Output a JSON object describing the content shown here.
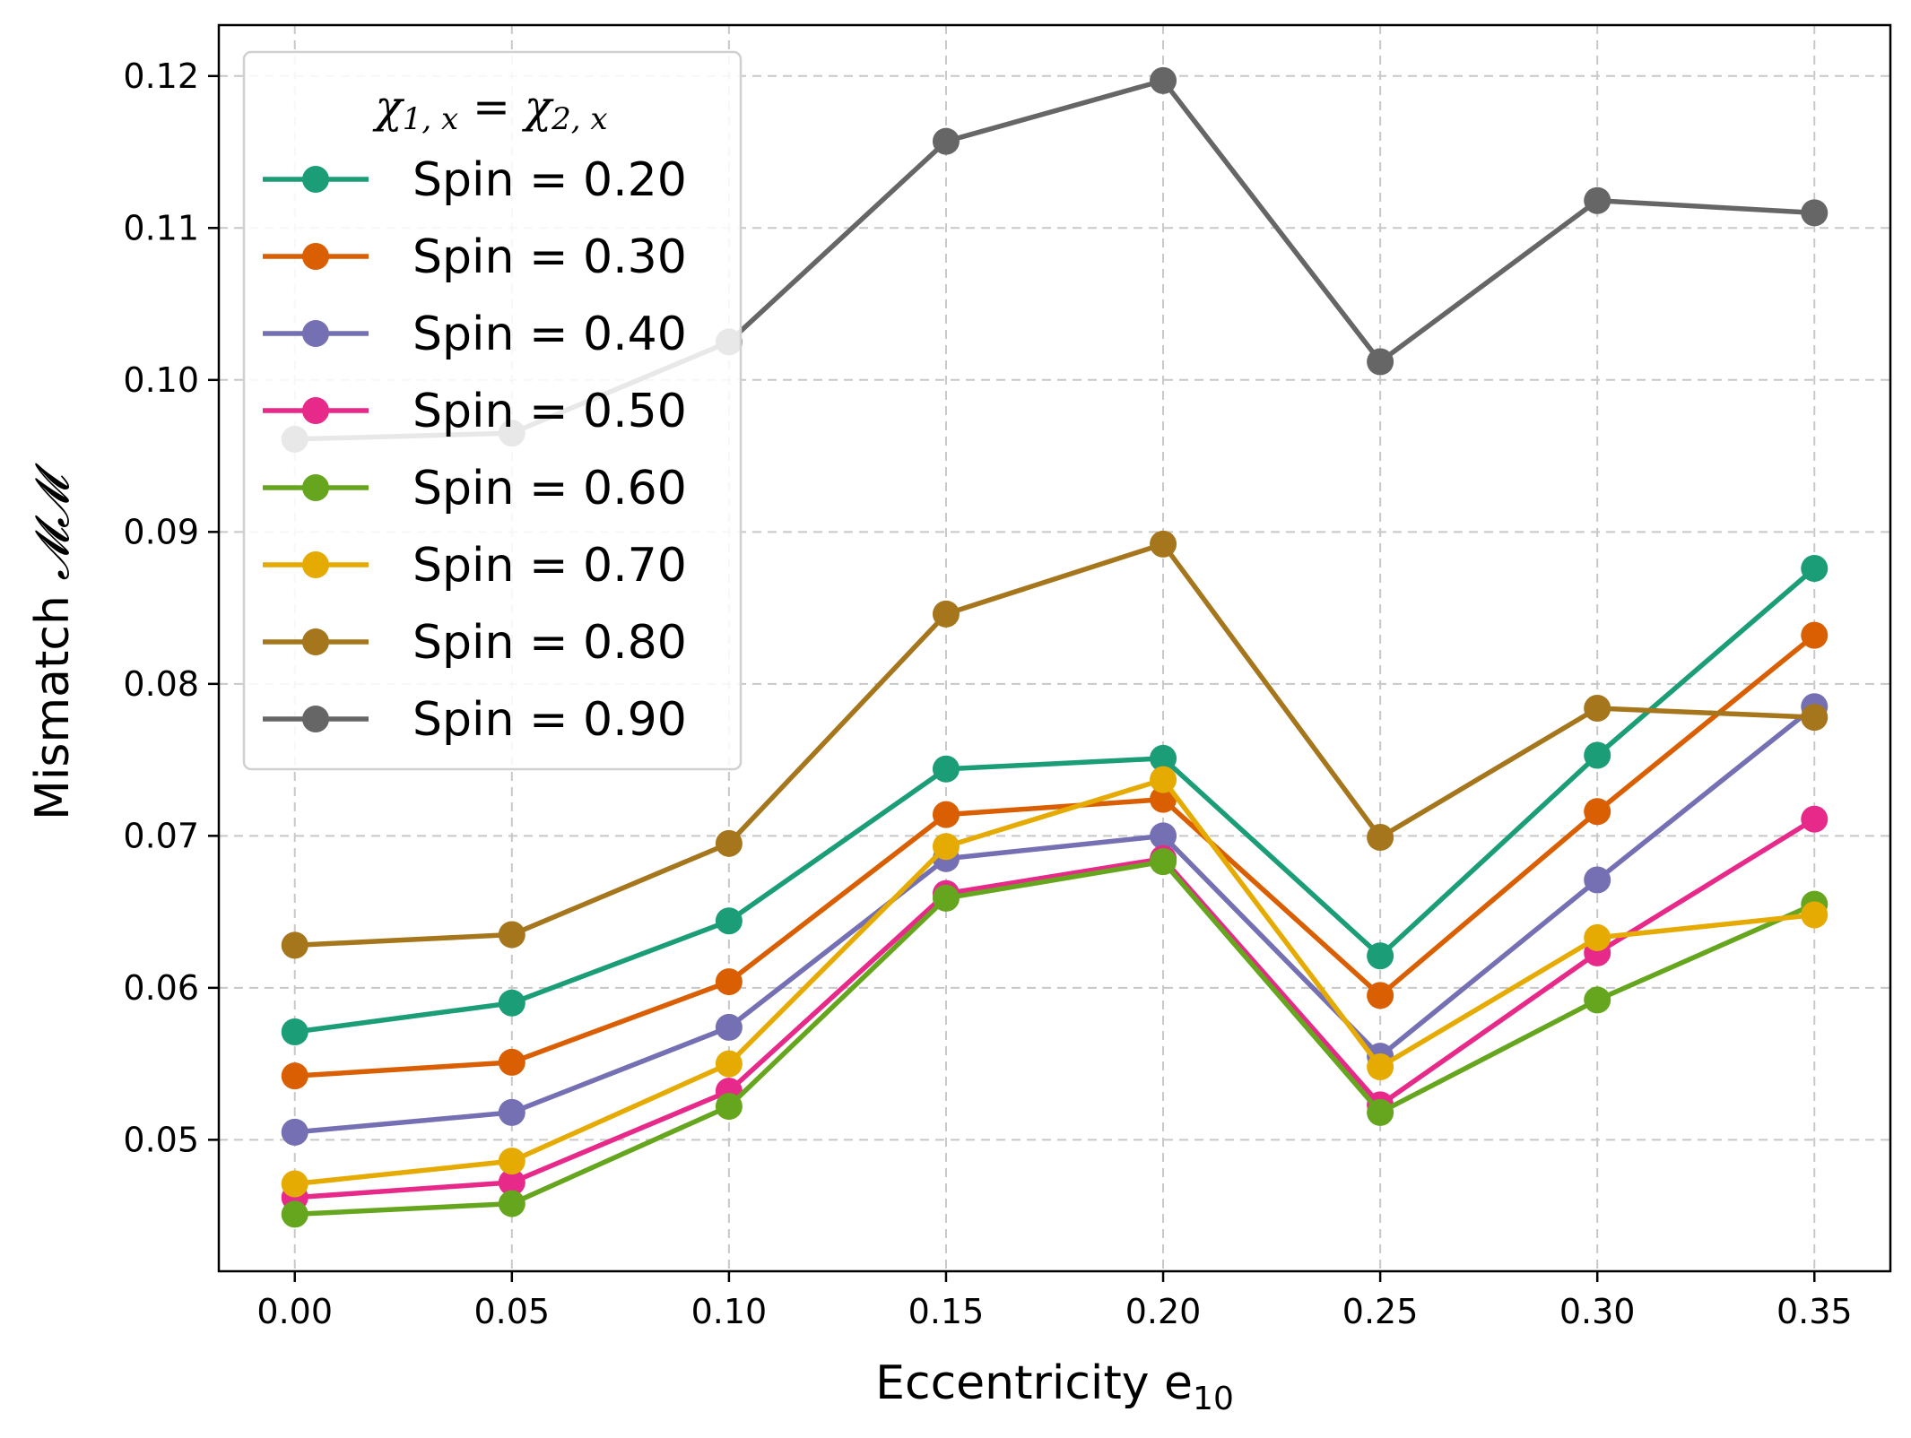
{
  "chart_data": {
    "type": "line",
    "xlabel": "Eccentricity e",
    "xlabel_subscript": "10",
    "ylabel": "Mismatch ",
    "ylabel_math": "𝓜𝓜",
    "x": [
      0.0,
      0.05,
      0.1,
      0.15,
      0.2,
      0.25,
      0.3,
      0.35
    ],
    "x_tick_labels": [
      "0.00",
      "0.05",
      "0.10",
      "0.15",
      "0.20",
      "0.25",
      "0.30",
      "0.35"
    ],
    "y_ticks": [
      0.05,
      0.06,
      0.07,
      0.08,
      0.09,
      0.1,
      0.11,
      0.12
    ],
    "y_tick_labels": [
      "0.05",
      "0.06",
      "0.07",
      "0.08",
      "0.09",
      "0.10",
      "0.11",
      "0.12"
    ],
    "xlim": [
      -0.0175,
      0.3675
    ],
    "ylim": [
      0.04135,
      0.12335
    ],
    "grid": true,
    "legend": {
      "placement": "top-left",
      "title_parts": [
        "χ",
        "1, x",
        " = ",
        "χ",
        "2, x"
      ]
    },
    "series": [
      {
        "name": "Spin = 0.20",
        "color": "#1b9e77",
        "values": [
          0.0571,
          0.059,
          0.0644,
          0.0744,
          0.0751,
          0.0621,
          0.0753,
          0.0876
        ]
      },
      {
        "name": "Spin = 0.30",
        "color": "#d95f02",
        "values": [
          0.0542,
          0.0551,
          0.0604,
          0.0714,
          0.0724,
          0.0595,
          0.0716,
          0.0832
        ]
      },
      {
        "name": "Spin = 0.40",
        "color": "#7570b3",
        "values": [
          0.0505,
          0.0518,
          0.0574,
          0.0685,
          0.07,
          0.0555,
          0.0671,
          0.0785
        ]
      },
      {
        "name": "Spin = 0.50",
        "color": "#e7298a",
        "values": [
          0.0462,
          0.0472,
          0.0532,
          0.0662,
          0.0685,
          0.0523,
          0.0623,
          0.0711
        ]
      },
      {
        "name": "Spin = 0.60",
        "color": "#66a61e",
        "values": [
          0.0451,
          0.0458,
          0.0522,
          0.0659,
          0.0683,
          0.0518,
          0.0592,
          0.0655
        ]
      },
      {
        "name": "Spin = 0.70",
        "color": "#e6ab02",
        "values": [
          0.0471,
          0.0486,
          0.055,
          0.0693,
          0.0737,
          0.0548,
          0.0633,
          0.0648
        ]
      },
      {
        "name": "Spin = 0.80",
        "color": "#a6761d",
        "values": [
          0.0628,
          0.0635,
          0.0695,
          0.0846,
          0.0892,
          0.0699,
          0.0784,
          0.0778
        ]
      },
      {
        "name": "Spin = 0.90",
        "color": "#666666",
        "values": [
          0.0961,
          0.0965,
          0.1025,
          0.1157,
          0.1197,
          0.1012,
          0.1118,
          0.111
        ]
      }
    ]
  }
}
